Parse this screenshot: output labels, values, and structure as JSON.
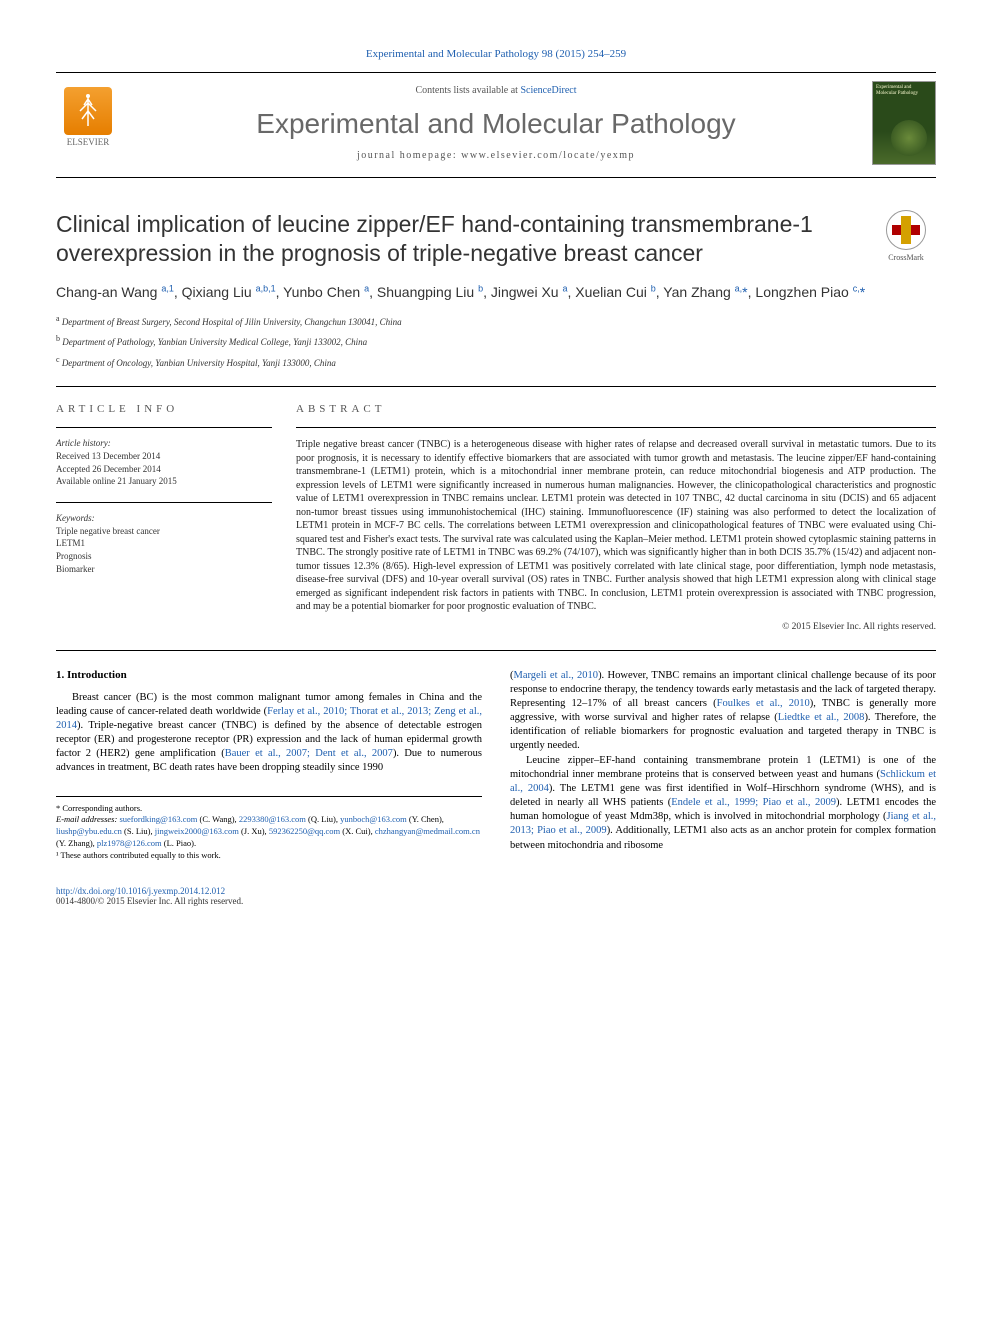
{
  "header": {
    "citation": "Experimental and Molecular Pathology 98 (2015) 254–259",
    "contents_label": "Contents lists available at ",
    "sciencedirect": "ScienceDirect",
    "journal_name": "Experimental and Molecular Pathology",
    "homepage_label": "journal homepage: www.elsevier.com/locate/yexmp",
    "elsevier": "ELSEVIER",
    "cover_text": "Experimental and Molecular Pathology"
  },
  "crossmark": "CrossMark",
  "title": "Clinical implication of leucine zipper/EF hand-containing transmembrane-1 overexpression in the prognosis of triple-negative breast cancer",
  "authors_html": "Chang-an Wang <sup>a,1</sup>, Qixiang Liu <sup>a,b,1</sup>, Yunbo Chen <sup>a</sup>, Shuangping Liu <sup>b</sup>, Jingwei Xu <sup>a</sup>, Xuelian Cui <sup>b</sup>, Yan Zhang <sup>a,</sup><span class='star'>*</span>, Longzhen Piao <sup>c,</sup><span class='star'>*</span>",
  "affiliations": [
    {
      "sup": "a",
      "text": "Department of Breast Surgery, Second Hospital of Jilin University, Changchun 130041, China"
    },
    {
      "sup": "b",
      "text": "Department of Pathology, Yanbian University Medical College, Yanji 133002, China"
    },
    {
      "sup": "c",
      "text": "Department of Oncology, Yanbian University Hospital, Yanji 133000, China"
    }
  ],
  "article_info": {
    "heading": "ARTICLE INFO",
    "history_label": "Article history:",
    "received": "Received 13 December 2014",
    "accepted": "Accepted 26 December 2014",
    "available": "Available online 21 January 2015",
    "keywords_label": "Keywords:",
    "keywords": [
      "Triple negative breast cancer",
      "LETM1",
      "Prognosis",
      "Biomarker"
    ]
  },
  "abstract": {
    "heading": "ABSTRACT",
    "text": "Triple negative breast cancer (TNBC) is a heterogeneous disease with higher rates of relapse and decreased overall survival in metastatic tumors. Due to its poor prognosis, it is necessary to identify effective biomarkers that are associated with tumor growth and metastasis. The leucine zipper/EF hand-containing transmembrane-1 (LETM1) protein, which is a mitochondrial inner membrane protein, can reduce mitochondrial biogenesis and ATP production. The expression levels of LETM1 were significantly increased in numerous human malignancies. However, the clinicopathological characteristics and prognostic value of LETM1 overexpression in TNBC remains unclear. LETM1 protein was detected in 107 TNBC, 42 ductal carcinoma in situ (DCIS) and 65 adjacent non-tumor breast tissues using immunohistochemical (IHC) staining. Immunofluorescence (IF) staining was also performed to detect the localization of LETM1 protein in MCF-7 BC cells. The correlations between LETM1 overexpression and clinicopathological features of TNBC were evaluated using Chi-squared test and Fisher's exact tests. The survival rate was calculated using the Kaplan–Meier method. LETM1 protein showed cytoplasmic staining patterns in TNBC. The strongly positive rate of LETM1 in TNBC was 69.2% (74/107), which was significantly higher than in both DCIS 35.7% (15/42) and adjacent non-tumor tissues 12.3% (8/65). High-level expression of LETM1 was positively correlated with late clinical stage, poor differentiation, lymph node metastasis, disease-free survival (DFS) and 10-year overall survival (OS) rates in TNBC. Further analysis showed that high LETM1 expression along with clinical stage emerged as significant independent risk factors in patients with TNBC. In conclusion, LETM1 protein overexpression is associated with TNBC progression, and may be a potential biomarker for poor prognostic evaluation of TNBC.",
    "copyright": "© 2015 Elsevier Inc. All rights reserved."
  },
  "intro": {
    "heading": "1. Introduction",
    "col1": "Breast cancer (BC) is the most common malignant tumor among females in China and the leading cause of cancer-related death worldwide (<span class='cite'>Ferlay et al., 2010; Thorat et al., 2013; Zeng et al., 2014</span>). Triple-negative breast cancer (TNBC) is defined by the absence of detectable estrogen receptor (ER) and progesterone receptor (PR) expression and the lack of human epidermal growth factor 2 (HER2) gene amplification (<span class='cite'>Bauer et al., 2007; Dent et al., 2007</span>). Due to numerous advances in treatment, BC death rates have been dropping steadily since 1990",
    "col2_p1": "(<span class='cite'>Margeli et al., 2010</span>). However, TNBC remains an important clinical challenge because of its poor response to endocrine therapy, the tendency towards early metastasis and the lack of targeted therapy. Representing 12–17% of all breast cancers (<span class='cite'>Foulkes et al., 2010</span>), TNBC is generally more aggressive, with worse survival and higher rates of relapse (<span class='cite'>Liedtke et al., 2008</span>). Therefore, the identification of reliable biomarkers for prognostic evaluation and targeted therapy in TNBC is urgently needed.",
    "col2_p2": "Leucine zipper–EF-hand containing transmembrane protein 1 (LETM1) is one of the mitochondrial inner membrane proteins that is conserved between yeast and humans (<span class='cite'>Schlickum et al., 2004</span>). The LETM1 gene was first identified in Wolf–Hirschhorn syndrome (WHS), and is deleted in nearly all WHS patients (<span class='cite'>Endele et al., 1999; Piao et al., 2009</span>). LETM1 encodes the human homologue of yeast Mdm38p, which is involved in mitochondrial morphology (<span class='cite'>Jiang et al., 2013; Piao et al., 2009</span>). Additionally, LETM1 also acts as an anchor protein for complex formation between mitochondria and ribosome"
  },
  "footnotes": {
    "corresponding": "* Corresponding authors.",
    "emails_label": "E-mail addresses: ",
    "emails": "<span class='email'>suefordking@163.com</span> (C. Wang), <span class='email'>2293380@163.com</span> (Q. Liu), <span class='email'>yunboch@163.com</span> (Y. Chen), <span class='email'>liushp@ybu.edu.cn</span> (S. Liu), <span class='email'>jingweix2000@163.com</span> (J. Xu), <span class='email'>592362250@qq.com</span> (X. Cui), <span class='email'>chzhangyan@medmail.com.cn</span> (Y. Zhang), <span class='email'>plz1978@126.com</span> (L. Piao).",
    "equal": "¹ These authors contributed equally to this work."
  },
  "footer": {
    "doi": "http://dx.doi.org/10.1016/j.yexmp.2014.12.012",
    "issn": "0014-4800/© 2015 Elsevier Inc. All rights reserved."
  },
  "colors": {
    "link": "#2060b0",
    "elsevier_orange": "#e67e00",
    "text": "#222"
  }
}
